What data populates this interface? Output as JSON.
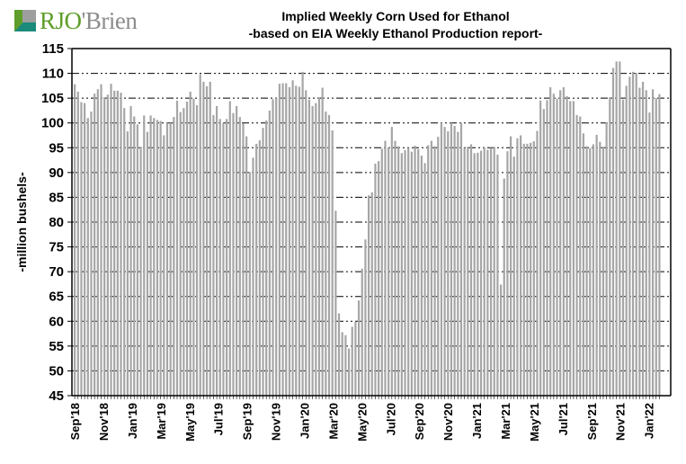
{
  "logo": {
    "text_rjo": "RJO",
    "text_brien": "'Brien"
  },
  "chart_data": {
    "type": "bar",
    "title": "Implied  Weekly Corn Used for Ethanol",
    "subtitle": "-based on EIA Weekly Ethanol Production report-",
    "xlabel": "",
    "ylabel": "-million bushels-",
    "ylim": [
      45,
      115
    ],
    "yticks": [
      45,
      50,
      55,
      60,
      65,
      70,
      75,
      80,
      85,
      90,
      95,
      100,
      105,
      110,
      115
    ],
    "grid": true,
    "bar_color": "#a6a6a6",
    "xtick_labels": [
      "Sep'18",
      "Nov'18",
      "Jan'19",
      "Mar'19",
      "May'19",
      "Jul'19",
      "Sep'19",
      "Nov'19",
      "Jan'20",
      "Mar'20",
      "May'20",
      "Jul'20",
      "Sep'20",
      "Nov'20",
      "Jan'21",
      "Mar'21",
      "May'21",
      "Jul'21",
      "Sep'21",
      "Nov'21",
      "Jan'22"
    ],
    "values": [
      107.8,
      106.3,
      104.2,
      104,
      101,
      102.3,
      105.9,
      106.8,
      107.8,
      105.2,
      105.7,
      107.9,
      106.5,
      106.5,
      106.1,
      103,
      98.3,
      103.4,
      101.3,
      99.7,
      95.2,
      101.5,
      98.2,
      101.5,
      101,
      100.6,
      100.4,
      97.5,
      100,
      100,
      101.2,
      104.5,
      102.2,
      103,
      104.3,
      106.3,
      104.9,
      103.6,
      109.8,
      108.3,
      107.4,
      108.3,
      101.6,
      103.4,
      100.8,
      100,
      100.8,
      104.4,
      102,
      103.4,
      101.2,
      99.9,
      97.3,
      90.1,
      93,
      95.8,
      96.5,
      99,
      100.5,
      102.5,
      104.8,
      105,
      107.9,
      108,
      108,
      107.2,
      108.6,
      107.5,
      107.3,
      110.3,
      106.6,
      104.7,
      103.4,
      104,
      105.2,
      107.1,
      102.3,
      101.6,
      98.5,
      82.3,
      61.6,
      57.8,
      57.2,
      54.5,
      58.9,
      59.9,
      64.2,
      70.6,
      76.5,
      85.4,
      86,
      91.8,
      92.3,
      94.8,
      96.4,
      95.1,
      99.2,
      96.4,
      95.3,
      93.9,
      94.5,
      95,
      94.2,
      95.4,
      94.7,
      93.4,
      91.9,
      95.5,
      96.4,
      95.3,
      97.2,
      100,
      99.2,
      98.3,
      100,
      99.4,
      98.2,
      100,
      95,
      95.2,
      95.7,
      93.9,
      94,
      94.4,
      95,
      94.6,
      95,
      95.2,
      93.6,
      67.4,
      88.8,
      94.3,
      97.3,
      93.2,
      96.9,
      97.5,
      95.8,
      95.8,
      96,
      96.3,
      98.4,
      104.5,
      102.8,
      104.6,
      107.2,
      105.9,
      104.9,
      106.6,
      107.2,
      105.4,
      104.4,
      104.4,
      101.6,
      101.3,
      97.9,
      95.3,
      94.9,
      95.7,
      97.6,
      96.2,
      95.2,
      100.1,
      105.2,
      111.1,
      112.4,
      112.4,
      104.7,
      107.5,
      109.3,
      110.3,
      110.1,
      107.1,
      108.3,
      106.6,
      102.1,
      106.8,
      105,
      105.8
    ]
  }
}
